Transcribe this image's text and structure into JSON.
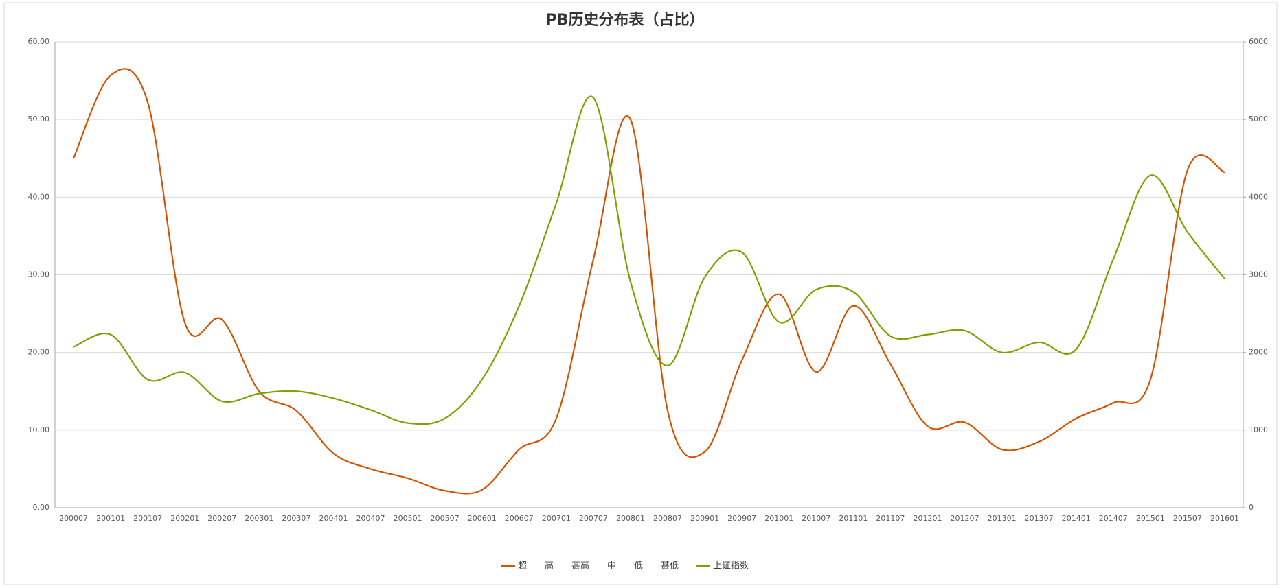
{
  "chart_data": {
    "type": "line",
    "title": "PB历史分布表（占比）",
    "categories": [
      "200007",
      "200101",
      "200107",
      "200201",
      "200207",
      "200301",
      "200307",
      "200401",
      "200407",
      "200501",
      "200507",
      "200601",
      "200607",
      "200701",
      "200707",
      "200801",
      "200807",
      "200901",
      "200907",
      "201001",
      "201007",
      "201101",
      "201107",
      "201201",
      "201207",
      "201301",
      "201307",
      "201401",
      "201407",
      "201501",
      "201507",
      "201601"
    ],
    "series": [
      {
        "name": "超",
        "color": "#d35400",
        "values": [
          45,
          55.7,
          52.2,
          23.8,
          24.2,
          15,
          12.5,
          7,
          5,
          3.8,
          2.2,
          2.3,
          7.5,
          11.5,
          32,
          50,
          12.5,
          7.2,
          19,
          27.5,
          17.5,
          26,
          18.5,
          10.5,
          11,
          7.5,
          8.5,
          11.5,
          13.5,
          16.5,
          43.5,
          43.2
        ]
      },
      {
        "name": "高",
        "values": [
          null,
          null,
          null,
          null,
          null,
          null,
          null,
          null,
          null,
          null,
          null,
          null,
          null,
          null,
          null,
          null,
          null,
          null,
          null,
          null,
          null,
          null,
          null,
          null,
          null,
          null,
          null,
          null,
          null,
          null,
          null,
          null
        ]
      },
      {
        "name": "甚高",
        "values": [
          null,
          null,
          null,
          null,
          null,
          null,
          null,
          null,
          null,
          null,
          null,
          null,
          null,
          null,
          null,
          null,
          null,
          null,
          null,
          null,
          null,
          null,
          null,
          null,
          null,
          null,
          null,
          null,
          null,
          null,
          null,
          null
        ]
      },
      {
        "name": "中",
        "values": [
          null,
          null,
          null,
          null,
          null,
          null,
          null,
          null,
          null,
          null,
          null,
          null,
          null,
          null,
          null,
          null,
          null,
          null,
          null,
          null,
          null,
          null,
          null,
          null,
          null,
          null,
          null,
          null,
          null,
          null,
          null,
          null
        ]
      },
      {
        "name": "低",
        "values": [
          null,
          null,
          null,
          null,
          null,
          null,
          null,
          null,
          null,
          null,
          null,
          null,
          null,
          null,
          null,
          null,
          null,
          null,
          null,
          null,
          null,
          null,
          null,
          null,
          null,
          null,
          null,
          null,
          null,
          null,
          null,
          null
        ]
      },
      {
        "name": "甚低",
        "values": [
          null,
          null,
          null,
          null,
          null,
          null,
          null,
          null,
          null,
          null,
          null,
          null,
          null,
          null,
          null,
          null,
          null,
          null,
          null,
          null,
          null,
          null,
          null,
          null,
          null,
          null,
          null,
          null,
          null,
          null,
          null,
          null
        ]
      },
      {
        "name": "上证指数",
        "color": "#7aa300",
        "axis": "y2",
        "values": [
          2070,
          2230,
          1650,
          1740,
          1370,
          1470,
          1500,
          1410,
          1260,
          1090,
          1150,
          1650,
          2600,
          3920,
          5280,
          2910,
          1830,
          2970,
          3290,
          2390,
          2810,
          2780,
          2210,
          2230,
          2280,
          2000,
          2130,
          2040,
          3200,
          4280,
          3550,
          2950
        ]
      }
    ],
    "ylim": [
      0,
      60
    ],
    "yticks": [
      {
        "value": 0,
        "label": "0.00"
      },
      {
        "value": 10,
        "label": "10.00"
      },
      {
        "value": 20,
        "label": "20.00"
      },
      {
        "value": 30,
        "label": "30.00"
      },
      {
        "value": 40,
        "label": "40.00"
      },
      {
        "value": 50,
        "label": "50.00"
      },
      {
        "value": 60,
        "label": "60.00"
      }
    ],
    "y2lim": [
      0,
      6000
    ],
    "y2ticks": [
      0,
      1000,
      2000,
      3000,
      4000,
      5000,
      6000
    ],
    "grid": true,
    "smooth": true,
    "legend": "bottom"
  }
}
